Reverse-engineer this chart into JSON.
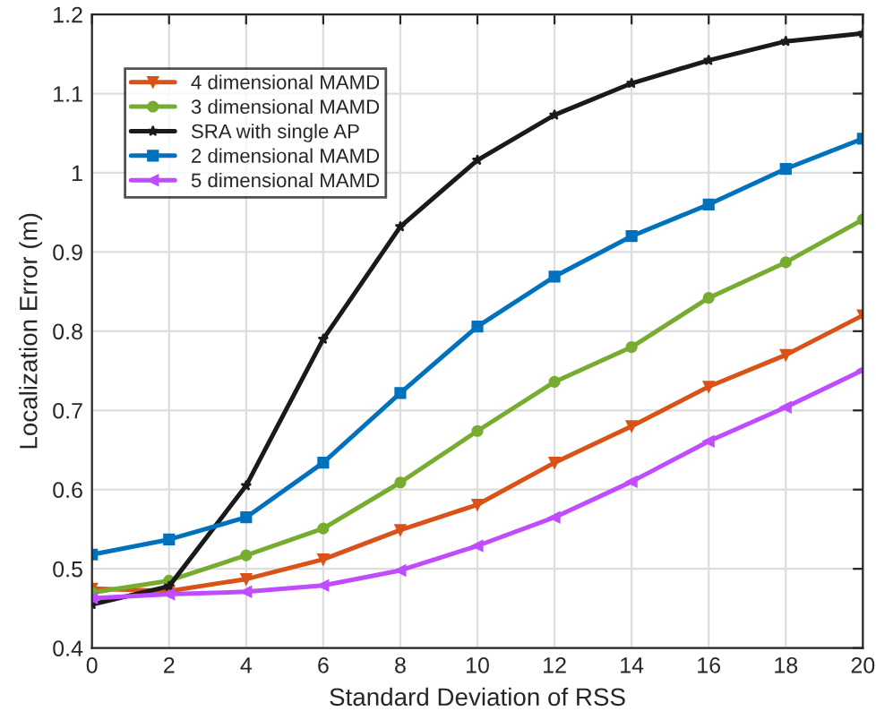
{
  "chart_data": {
    "type": "line",
    "xlabel": "Standard Deviation of RSS",
    "ylabel": "Localization Error (m)",
    "x": [
      0,
      2,
      4,
      6,
      8,
      10,
      12,
      14,
      16,
      18,
      20
    ],
    "xlim": [
      0,
      20
    ],
    "xticks": [
      0,
      2,
      4,
      6,
      8,
      10,
      12,
      14,
      16,
      18,
      20
    ],
    "ylim": [
      0.4,
      1.2
    ],
    "yticks": [
      {
        "value": 0.4,
        "label": "0.4"
      },
      {
        "value": 0.5,
        "label": "0.5"
      },
      {
        "value": 0.6,
        "label": "0.6"
      },
      {
        "value": 0.7,
        "label": "0.7"
      },
      {
        "value": 0.8,
        "label": "0.8"
      },
      {
        "value": 0.9,
        "label": "0.9"
      },
      {
        "value": 1.0,
        "label": "1"
      },
      {
        "value": 1.1,
        "label": "1.1"
      },
      {
        "value": 1.2,
        "label": "1.2"
      }
    ],
    "grid": true,
    "legend": "top left",
    "line_style": "solid",
    "series": [
      {
        "name": "4 dimensional MAMD",
        "color": "#d95319",
        "marker": "triangle_down",
        "values": [
          0.475,
          0.472,
          0.487,
          0.512,
          0.549,
          0.581,
          0.634,
          0.68,
          0.73,
          0.77,
          0.82
        ]
      },
      {
        "name": "3 dimensional MAMD",
        "color": "#77ac30",
        "marker": "circle",
        "values": [
          0.47,
          0.485,
          0.517,
          0.551,
          0.609,
          0.674,
          0.736,
          0.78,
          0.842,
          0.887,
          0.941
        ]
      },
      {
        "name": "SRA with single AP",
        "color": "#1a1a1a",
        "marker": "star",
        "values": [
          0.455,
          0.478,
          0.605,
          0.79,
          0.932,
          1.016,
          1.073,
          1.113,
          1.142,
          1.166,
          1.176
        ]
      },
      {
        "name": "2 dimensional MAMD",
        "color": "#0072bd",
        "marker": "square",
        "values": [
          0.518,
          0.537,
          0.565,
          0.634,
          0.722,
          0.806,
          0.869,
          0.92,
          0.96,
          1.005,
          1.043
        ]
      },
      {
        "name": "5 dimensional MAMD",
        "color": "#bf4dff",
        "marker": "triangle_left",
        "values": [
          0.463,
          0.468,
          0.471,
          0.479,
          0.498,
          0.529,
          0.565,
          0.61,
          0.661,
          0.704,
          0.751
        ]
      }
    ]
  }
}
